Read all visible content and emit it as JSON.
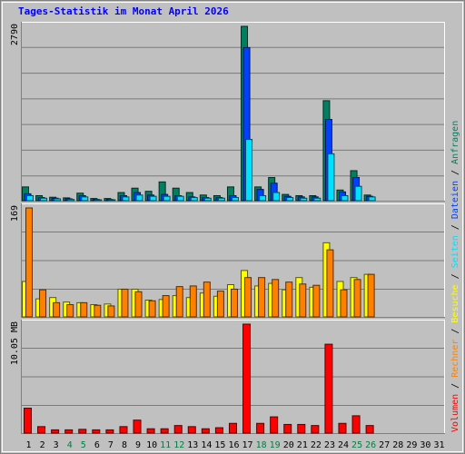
{
  "title": "Tages-Statistik im Monat April 2026",
  "colors": {
    "background": "#c0c0c0",
    "frame": "#808080",
    "title": "#0000ff",
    "gridline": "#7a7a7a",
    "anfragen": "#008060",
    "dateien": "#0040ff",
    "seiten": "#00e0ff",
    "besuche": "#ffff00",
    "rechner": "#ff8000",
    "volumen": "#ff0000",
    "weekend_label": "#008040",
    "weekday_label": "#000000",
    "separator": "#000000"
  },
  "legend": {
    "separator": " / ",
    "items": [
      {
        "key": "anfragen",
        "label": "Anfragen",
        "color": "#008060"
      },
      {
        "key": "dateien",
        "label": "Dateien",
        "color": "#0040ff"
      },
      {
        "key": "seiten",
        "label": "Seiten",
        "color": "#00e0ff"
      },
      {
        "key": "besuche",
        "label": "Besuche",
        "color": "#ffff00"
      },
      {
        "key": "rechner",
        "label": "Rechner",
        "color": "#ff8000"
      },
      {
        "key": "volumen",
        "label": "Volumen",
        "color": "#ff0000"
      }
    ]
  },
  "chart_data": [
    {
      "type": "bar",
      "x": [
        1,
        2,
        3,
        4,
        5,
        6,
        7,
        8,
        9,
        10,
        11,
        12,
        13,
        14,
        15,
        16,
        17,
        18,
        19,
        20,
        21,
        22,
        23,
        24,
        25,
        26,
        27,
        28,
        29,
        30,
        31
      ],
      "weekend_days": [
        4,
        5,
        11,
        12,
        18,
        19,
        25,
        26
      ],
      "y_max_label": "2790",
      "ylim": [
        0,
        2790
      ],
      "series": [
        {
          "name": "Anfragen",
          "values": [
            220,
            80,
            55,
            45,
            120,
            35,
            35,
            130,
            200,
            150,
            300,
            200,
            130,
            90,
            80,
            220,
            2790,
            220,
            370,
            100,
            80,
            80,
            1600,
            170,
            480,
            90,
            0,
            0,
            0,
            0,
            0
          ]
        },
        {
          "name": "Dateien",
          "values": [
            110,
            50,
            40,
            30,
            80,
            20,
            20,
            80,
            130,
            90,
            100,
            80,
            60,
            50,
            50,
            80,
            2450,
            180,
            280,
            70,
            60,
            60,
            1300,
            140,
            370,
            70,
            0,
            0,
            0,
            0,
            0
          ]
        },
        {
          "name": "Seiten",
          "values": [
            80,
            40,
            30,
            20,
            60,
            15,
            15,
            60,
            90,
            70,
            70,
            70,
            50,
            40,
            40,
            50,
            980,
            80,
            130,
            50,
            40,
            40,
            750,
            80,
            230,
            60,
            0,
            0,
            0,
            0,
            0
          ]
        }
      ]
    },
    {
      "type": "bar",
      "x": [
        1,
        2,
        3,
        4,
        5,
        6,
        7,
        8,
        9,
        10,
        11,
        12,
        13,
        14,
        15,
        16,
        17,
        18,
        19,
        20,
        21,
        22,
        23,
        24,
        25,
        26,
        27,
        28,
        29,
        30,
        31
      ],
      "y_max_label": "169",
      "ylim": [
        0,
        169
      ],
      "series": [
        {
          "name": "Besuche",
          "values": [
            55,
            28,
            30,
            23,
            22,
            19,
            20,
            43,
            43,
            26,
            27,
            33,
            30,
            37,
            32,
            50,
            72,
            48,
            52,
            42,
            61,
            46,
            115,
            55,
            61,
            66,
            0,
            0,
            0,
            0,
            0
          ]
        },
        {
          "name": "Rechner",
          "values": [
            169,
            42,
            22,
            19,
            22,
            18,
            17,
            43,
            39,
            25,
            33,
            47,
            48,
            54,
            40,
            43,
            61,
            61,
            58,
            54,
            51,
            49,
            104,
            42,
            58,
            66,
            0,
            0,
            0,
            0,
            0
          ]
        }
      ]
    },
    {
      "type": "bar",
      "x": [
        1,
        2,
        3,
        4,
        5,
        6,
        7,
        8,
        9,
        10,
        11,
        12,
        13,
        14,
        15,
        16,
        17,
        18,
        19,
        20,
        21,
        22,
        23,
        24,
        25,
        26,
        27,
        28,
        29,
        30,
        31
      ],
      "y_max_label": "10.05 MB",
      "ylim": [
        0,
        10.05
      ],
      "series": [
        {
          "name": "Volumen",
          "values": [
            2.3,
            0.6,
            0.3,
            0.3,
            0.35,
            0.3,
            0.3,
            0.6,
            1.2,
            0.4,
            0.4,
            0.7,
            0.6,
            0.4,
            0.5,
            0.9,
            10.05,
            0.9,
            1.5,
            0.8,
            0.8,
            0.7,
            8.2,
            0.9,
            1.6,
            0.7,
            0,
            0,
            0,
            0,
            0
          ]
        }
      ]
    }
  ]
}
